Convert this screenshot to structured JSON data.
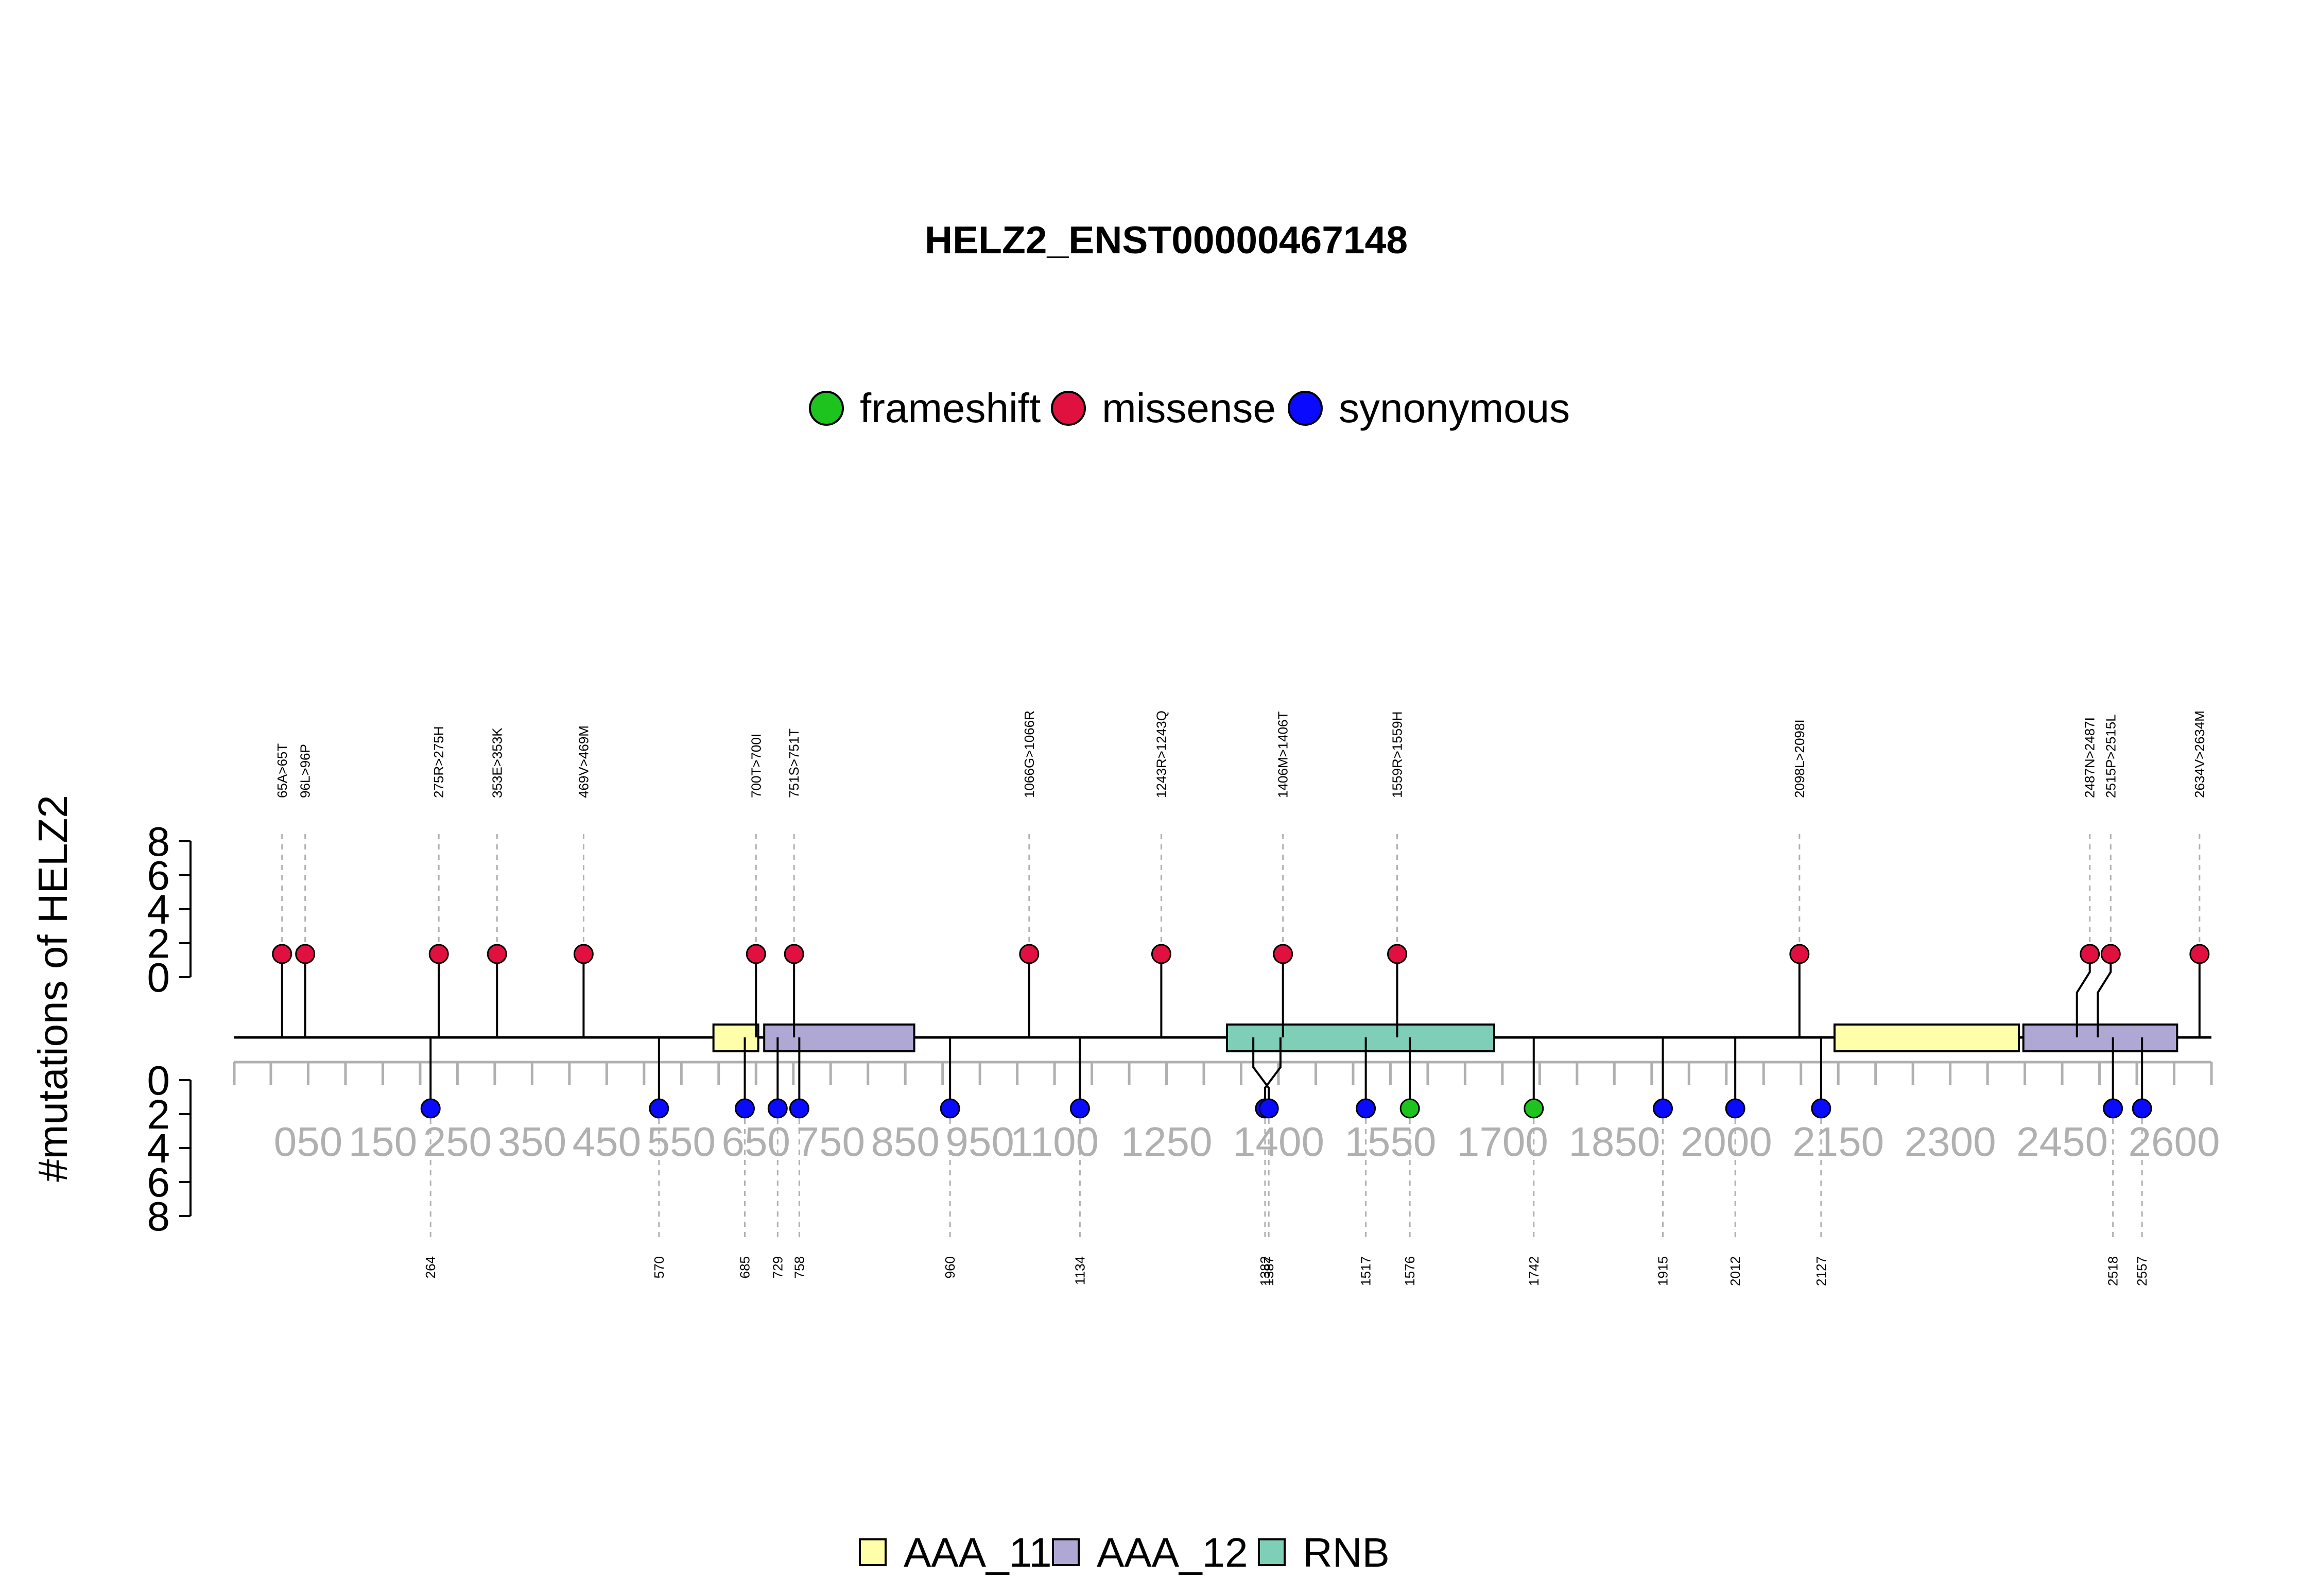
{
  "chart_data": {
    "type": "lollipop",
    "title": "HELZ2_ENST00000467148",
    "ylabel": "#mutations of HELZ2",
    "x_axis": {
      "ticks": [
        50,
        100,
        150,
        200,
        250,
        300,
        350,
        400,
        450,
        500,
        550,
        600,
        650,
        700,
        750,
        800,
        850,
        900,
        950,
        1000,
        1050,
        1100,
        1150,
        1200,
        1250,
        1300,
        1350,
        1400,
        1450,
        1500,
        1550,
        1600,
        1650,
        1700,
        1750,
        1800,
        1850,
        1900,
        1950,
        2000,
        2050,
        2100,
        2150,
        2200,
        2250,
        2300,
        2350,
        2400,
        2450,
        2500,
        2550,
        2600,
        2650
      ],
      "tick_labels": [
        {
          "text": "050",
          "at": 100
        },
        {
          "text": "150",
          "at": 200
        },
        {
          "text": "250",
          "at": 300
        },
        {
          "text": "350",
          "at": 400
        },
        {
          "text": "450",
          "at": 500
        },
        {
          "text": "550",
          "at": 600
        },
        {
          "text": "650",
          "at": 700
        },
        {
          "text": "750",
          "at": 800
        },
        {
          "text": "850",
          "at": 900
        },
        {
          "text": "950",
          "at": 1000
        },
        {
          "text": "1100",
          "at": 1100
        },
        {
          "text": "1250",
          "at": 1250
        },
        {
          "text": "1400",
          "at": 1400
        },
        {
          "text": "1550",
          "at": 1550
        },
        {
          "text": "1700",
          "at": 1700
        },
        {
          "text": "1850",
          "at": 1850
        },
        {
          "text": "2000",
          "at": 2000
        },
        {
          "text": "2150",
          "at": 2150
        },
        {
          "text": "2300",
          "at": 2300
        },
        {
          "text": "2450",
          "at": 2450
        },
        {
          "text": "2600",
          "at": 2600
        }
      ]
    },
    "y_axis_top": {
      "ticks": [
        0,
        2,
        4,
        6,
        8
      ],
      "ylim": [
        0,
        8
      ]
    },
    "y_axis_bottom": {
      "ticks": [
        0,
        2,
        4,
        6,
        8
      ],
      "ylim": [
        0,
        8
      ]
    },
    "legend": [
      {
        "name": "frameshift",
        "color": "#1ec41e"
      },
      {
        "name": "missense",
        "color": "#e0103f"
      },
      {
        "name": "synonymous",
        "color": "#0a0aff"
      }
    ],
    "domains": [
      {
        "name": "AAA_11",
        "start": 643,
        "end": 703,
        "color": "#ffffaa"
      },
      {
        "name": "AAA_12",
        "start": 711,
        "end": 912,
        "color": "#b0a8d4"
      },
      {
        "name": "RNB",
        "start": 1331,
        "end": 1689,
        "color": "#7fceb8"
      },
      {
        "name": "AAA_11",
        "start": 2145,
        "end": 2392,
        "color": "#ffffaa"
      },
      {
        "name": "AAA_12",
        "start": 2398,
        "end": 2604,
        "color": "#b0a8d4"
      }
    ],
    "domain_legend": [
      {
        "name": "AAA_11",
        "color": "#ffffaa"
      },
      {
        "name": "AAA_12",
        "color": "#b0a8d4"
      },
      {
        "name": "RNB",
        "color": "#7fceb8"
      }
    ],
    "top_mutations": [
      {
        "label": "65A>65T",
        "position": 65,
        "count": 1,
        "type": "missense"
      },
      {
        "label": "96L>96P",
        "position": 96,
        "count": 1,
        "type": "missense"
      },
      {
        "label": "275R>275H",
        "position": 275,
        "count": 1,
        "type": "missense"
      },
      {
        "label": "353E>353K",
        "position": 353,
        "count": 1,
        "type": "missense"
      },
      {
        "label": "469V>469M",
        "position": 469,
        "count": 1,
        "type": "missense"
      },
      {
        "label": "700T>700I",
        "position": 700,
        "count": 1,
        "type": "missense"
      },
      {
        "label": "751S>751T",
        "position": 751,
        "count": 1,
        "type": "missense"
      },
      {
        "label": "1066G>1066R",
        "position": 1066,
        "count": 1,
        "type": "missense"
      },
      {
        "label": "1243R>1243Q",
        "position": 1243,
        "count": 1,
        "type": "missense"
      },
      {
        "label": "1406M>1406T",
        "position": 1406,
        "count": 1,
        "type": "missense"
      },
      {
        "label": "1559R>1559H",
        "position": 1559,
        "count": 1,
        "type": "missense"
      },
      {
        "label": "2098L>2098I",
        "position": 2098,
        "count": 1,
        "type": "missense"
      },
      {
        "label": "2487N>2487I",
        "position": 2487,
        "count": 1,
        "type": "missense"
      },
      {
        "label": "2515P>2515L",
        "position": 2515,
        "count": 1,
        "type": "missense"
      },
      {
        "label": "2634V>2634M",
        "position": 2634,
        "count": 1,
        "type": "missense"
      }
    ],
    "bottom_mutations": [
      {
        "label": "264",
        "position": 264,
        "count": 1,
        "type": "synonymous"
      },
      {
        "label": "570",
        "position": 570,
        "count": 1,
        "type": "synonymous"
      },
      {
        "label": "685",
        "position": 685,
        "count": 1,
        "type": "synonymous"
      },
      {
        "label": "729",
        "position": 729,
        "count": 1,
        "type": "synonymous"
      },
      {
        "label": "758",
        "position": 758,
        "count": 1,
        "type": "synonymous"
      },
      {
        "label": "960",
        "position": 960,
        "count": 1,
        "type": "synonymous"
      },
      {
        "label": "1134",
        "position": 1134,
        "count": 1,
        "type": "synonymous"
      },
      {
        "label": "1382",
        "position": 1382,
        "count": 1,
        "type": "synonymous"
      },
      {
        "label": "1387",
        "position": 1387,
        "count": 1,
        "type": "synonymous"
      },
      {
        "label": "1517",
        "position": 1517,
        "count": 1,
        "type": "synonymous"
      },
      {
        "label": "1576",
        "position": 1576,
        "count": 1,
        "type": "frameshift"
      },
      {
        "label": "1742",
        "position": 1742,
        "count": 1,
        "type": "frameshift"
      },
      {
        "label": "1915",
        "position": 1915,
        "count": 1,
        "type": "synonymous"
      },
      {
        "label": "2012",
        "position": 2012,
        "count": 1,
        "type": "synonymous"
      },
      {
        "label": "2127",
        "position": 2127,
        "count": 1,
        "type": "synonymous"
      },
      {
        "label": "2518",
        "position": 2518,
        "count": 1,
        "type": "synonymous"
      },
      {
        "label": "2557",
        "position": 2557,
        "count": 1,
        "type": "synonymous"
      }
    ]
  }
}
